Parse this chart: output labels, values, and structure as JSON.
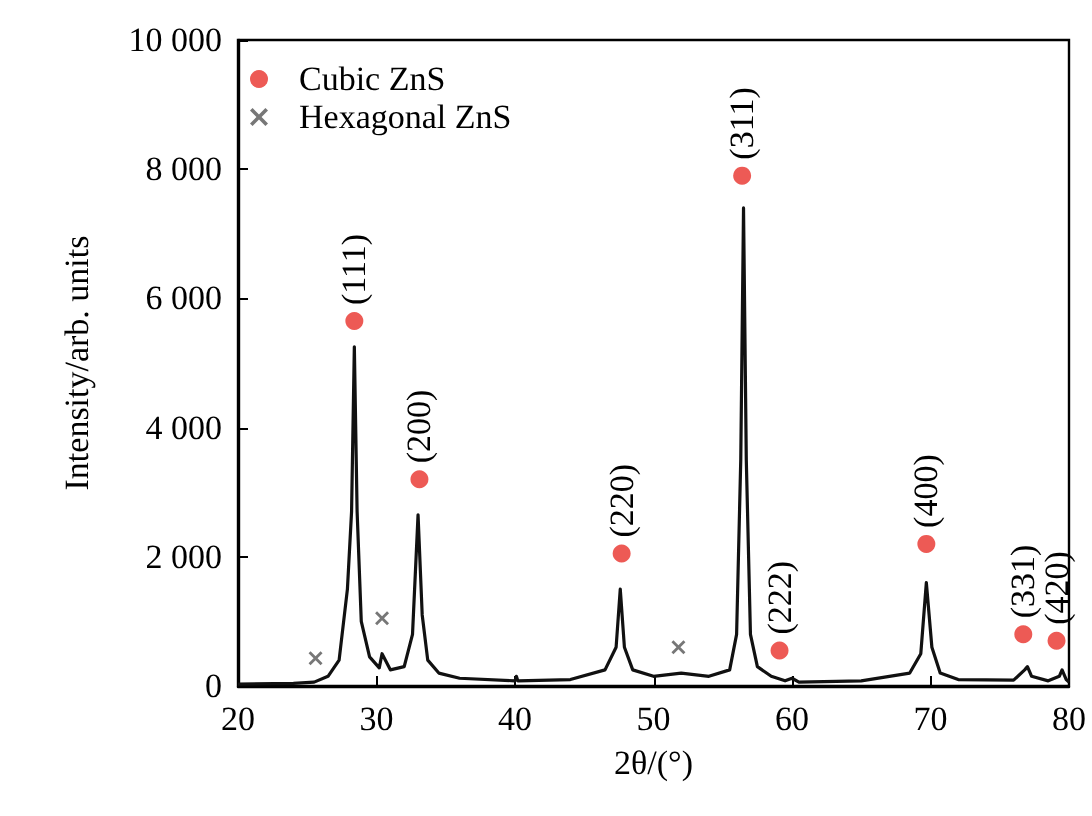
{
  "chart_data": {
    "type": "line",
    "xlabel": "2θ/(°)",
    "ylabel": "Intensity/arb. units",
    "xlim": [
      20,
      80
    ],
    "xticks": [
      20,
      30,
      40,
      50,
      60,
      70,
      80
    ],
    "ylim": [
      0,
      10000
    ],
    "yticks": [
      {
        "value": 0,
        "label": "0"
      },
      {
        "value": 2000,
        "label": "2 000"
      },
      {
        "value": 4000,
        "label": "4 000"
      },
      {
        "value": 6000,
        "label": "6 000"
      },
      {
        "value": 8000,
        "label": "8 000"
      },
      {
        "value": 10000,
        "label": "10 000"
      }
    ],
    "grid": false,
    "legend": "top left",
    "series": [
      {
        "color": "#111111",
        "marker": "none",
        "x": [
          20,
          24,
          25.5,
          26.5,
          27.3,
          27.9,
          28.2,
          28.4,
          28.6,
          28.9,
          29.5,
          30.2,
          30.4,
          31,
          32,
          32.6,
          33.0,
          33.3,
          33.7,
          34.5,
          36,
          40,
          40.1,
          40.2,
          44,
          46.5,
          47.3,
          47.6,
          47.9,
          48.5,
          50,
          52,
          54,
          55.5,
          56.0,
          56.3,
          56.5,
          56.7,
          57,
          57.5,
          58.5,
          59.5,
          60,
          60.5,
          65,
          68.5,
          69.3,
          69.7,
          70.1,
          70.7,
          72,
          76,
          76.8,
          77.0,
          77.3,
          78.5,
          79.3,
          79.5,
          79.8,
          80
        ],
        "values": [
          30,
          40,
          60,
          150,
          400,
          1500,
          2700,
          5250,
          2700,
          1000,
          450,
          280,
          500,
          250,
          300,
          800,
          2650,
          1100,
          400,
          200,
          120,
          80,
          150,
          80,
          100,
          250,
          600,
          1500,
          600,
          250,
          150,
          200,
          150,
          250,
          800,
          3500,
          7400,
          3500,
          800,
          300,
          150,
          80,
          120,
          60,
          80,
          200,
          500,
          1600,
          600,
          200,
          100,
          90,
          250,
          300,
          150,
          80,
          150,
          250,
          100,
          60
        ]
      },
      {
        "type": "scatter",
        "name": "Cubic ZnS",
        "color": "#e8312a",
        "marker": "circle",
        "x": [
          28.4,
          33.1,
          47.7,
          56.4,
          59.1,
          69.7,
          76.7,
          79.1
        ],
        "values": [
          5650,
          3200,
          2050,
          7900,
          550,
          2200,
          800,
          700
        ]
      },
      {
        "type": "scatter",
        "name": "Hexagonal ZnS",
        "color": "#555555",
        "marker": "cross",
        "x": [
          25.6,
          30.4,
          51.8
        ],
        "values": [
          430,
          1050,
          600
        ]
      }
    ],
    "annotations": [
      {
        "text": "(111)",
        "x": 28.4,
        "y": 5650
      },
      {
        "text": "(200)",
        "x": 33.1,
        "y": 3200
      },
      {
        "text": "(220)",
        "x": 47.7,
        "y": 2050
      },
      {
        "text": "(311)",
        "x": 56.4,
        "y": 7900
      },
      {
        "text": "(222)",
        "x": 59.1,
        "y": 550
      },
      {
        "text": "(400)",
        "x": 69.7,
        "y": 2200
      },
      {
        "text": "(331)",
        "x": 76.7,
        "y": 800
      },
      {
        "text": "(420)",
        "x": 79.1,
        "y": 700
      }
    ]
  }
}
